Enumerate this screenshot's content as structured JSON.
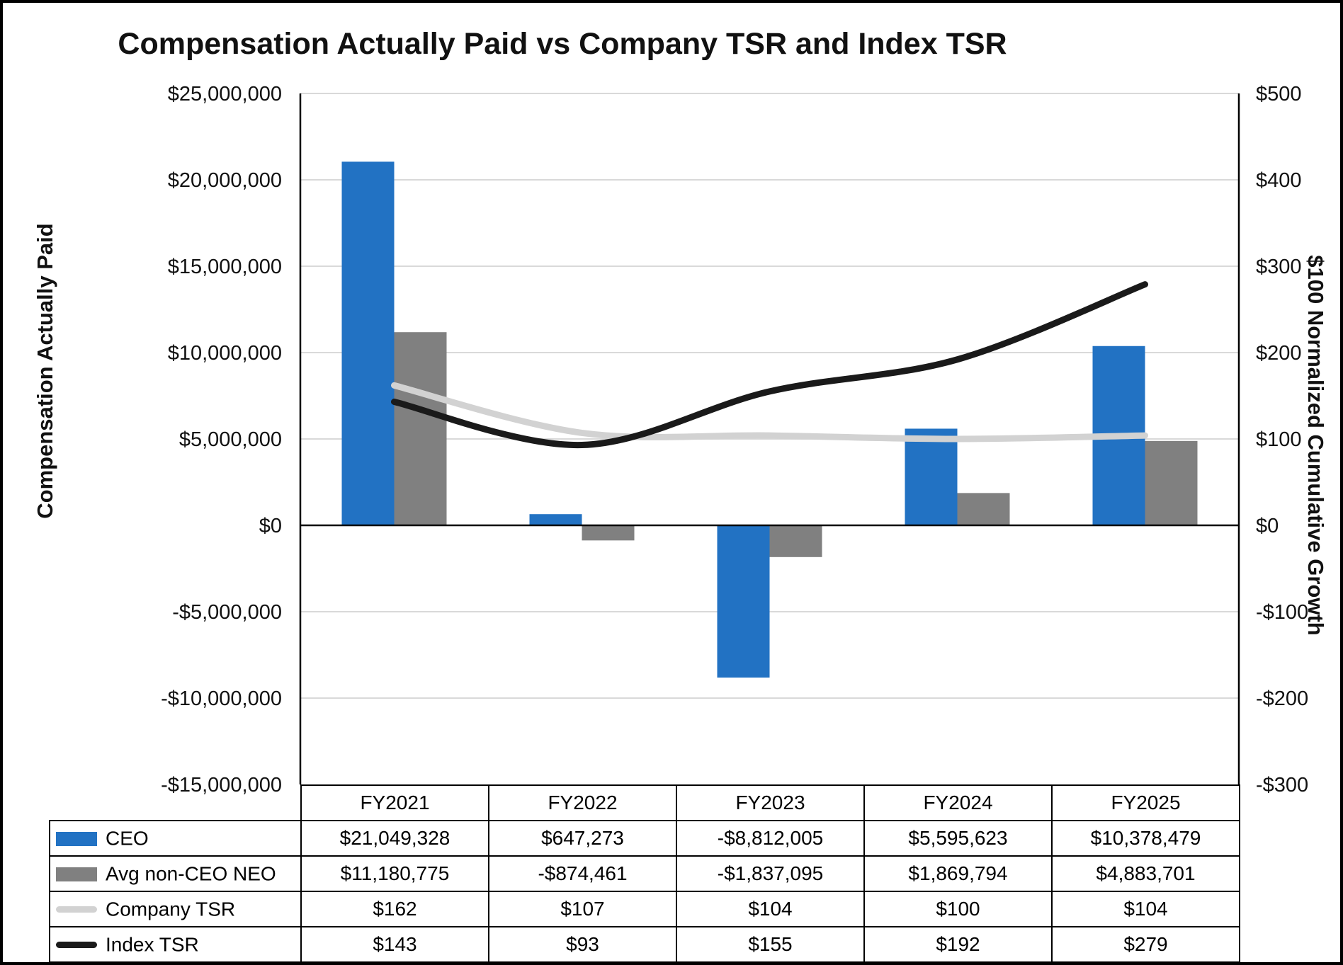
{
  "chart_data": {
    "type": "combo-bar-line",
    "title": "Compensation Actually Paid vs Company TSR and Index TSR",
    "categories": [
      "FY2021",
      "FY2022",
      "FY2023",
      "FY2024",
      "FY2025"
    ],
    "grid": "horizontal-light",
    "legend_position": "table-left",
    "left_axis": {
      "label": "Compensation Actually Paid",
      "min": -15000000,
      "max": 25000000,
      "step": 5000000,
      "ticks": [
        "$25,000,000",
        "$20,000,000",
        "$15,000,000",
        "$10,000,000",
        "$5,000,000",
        "$0",
        "-$5,000,000",
        "-$10,000,000",
        "-$15,000,000"
      ]
    },
    "right_axis": {
      "label": "$100 Normalized Cumulative Growth",
      "min": -300,
      "max": 500,
      "step": 100,
      "ticks": [
        "$500",
        "$400",
        "$300",
        "$200",
        "$100",
        "$0",
        "-$100",
        "-$200",
        "-$300"
      ]
    },
    "bar_series": [
      {
        "name": "CEO",
        "color": "#2272C3",
        "values": [
          21049328,
          647273,
          -8812005,
          5595623,
          10378479
        ]
      },
      {
        "name": "Avg non-CEO NEO",
        "color": "#808080",
        "values": [
          11180775,
          -874461,
          -1837095,
          1869794,
          4883701
        ]
      }
    ],
    "line_series": [
      {
        "name": "Company TSR",
        "color": "#D2D2D2",
        "values": [
          162,
          107,
          104,
          100,
          104
        ]
      },
      {
        "name": "Index TSR",
        "color": "#1A1A1A",
        "values": [
          143,
          93,
          155,
          192,
          279
        ]
      }
    ]
  },
  "table": {
    "header": [
      "FY2021",
      "FY2022",
      "FY2023",
      "FY2024",
      "FY2025"
    ],
    "rows": [
      {
        "legend": "CEO",
        "swatch_type": "bar",
        "swatch_color": "#2272C3",
        "cells": [
          "$21,049,328",
          "$647,273",
          "-$8,812,005",
          "$5,595,623",
          "$10,378,479"
        ]
      },
      {
        "legend": "Avg non-CEO NEO",
        "swatch_type": "bar",
        "swatch_color": "#808080",
        "cells": [
          "$11,180,775",
          "-$874,461",
          "-$1,837,095",
          "$1,869,794",
          "$4,883,701"
        ]
      },
      {
        "legend": "Company TSR",
        "swatch_type": "line",
        "swatch_color": "#D2D2D2",
        "cells": [
          "$162",
          "$107",
          "$104",
          "$100",
          "$104"
        ]
      },
      {
        "legend": "Index TSR",
        "swatch_type": "line",
        "swatch_color": "#1A1A1A",
        "cells": [
          "$143",
          "$93",
          "$155",
          "$192",
          "$279"
        ]
      }
    ]
  }
}
